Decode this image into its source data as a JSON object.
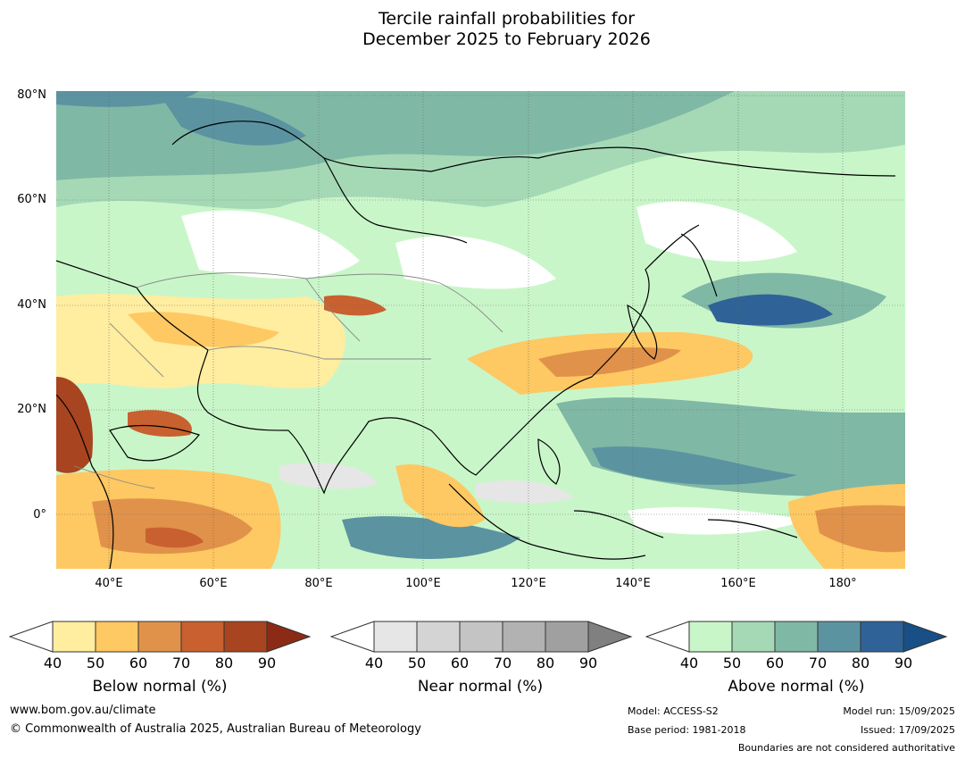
{
  "title_line1": "Tercile rainfall probabilities for",
  "title_line2": "December 2025 to February 2026",
  "map": {
    "lat_labels": [
      "80°N",
      "60°N",
      "40°N",
      "20°N",
      "0°"
    ],
    "lon_labels": [
      "40°E",
      "60°E",
      "80°E",
      "100°E",
      "120°E",
      "140°E",
      "160°E",
      "180°"
    ]
  },
  "colorbars": [
    {
      "label": "Below normal (%)",
      "ticks": [
        "40",
        "50",
        "60",
        "70",
        "80",
        "90"
      ],
      "colors": [
        "#ffeda0",
        "#fec862",
        "#e0924a",
        "#c8612f",
        "#a8441f",
        "#8b2b16"
      ]
    },
    {
      "label": "Near normal (%)",
      "ticks": [
        "40",
        "50",
        "60",
        "70",
        "80",
        "90"
      ],
      "colors": [
        "#e6e6e6",
        "#d4d4d4",
        "#c4c4c4",
        "#b2b2b2",
        "#a0a0a0",
        "#808080"
      ]
    },
    {
      "label": "Above normal (%)",
      "ticks": [
        "40",
        "50",
        "60",
        "70",
        "80",
        "90"
      ],
      "colors": [
        "#c9f6c9",
        "#a5d9b6",
        "#80b8a6",
        "#5b93a1",
        "#2f6297",
        "#174f86"
      ]
    }
  ],
  "footer": {
    "website": "www.bom.gov.au/climate",
    "copyright": "© Commonwealth of Australia 2025, Australian Bureau of Meteorology",
    "model": "Model: ACCESS-S2",
    "base_period": "Base period: 1981-2018",
    "model_run": "Model run: 15/09/2025",
    "issued": "Issued: 17/09/2025",
    "disclaimer": "Boundaries are not considered authoritative"
  }
}
